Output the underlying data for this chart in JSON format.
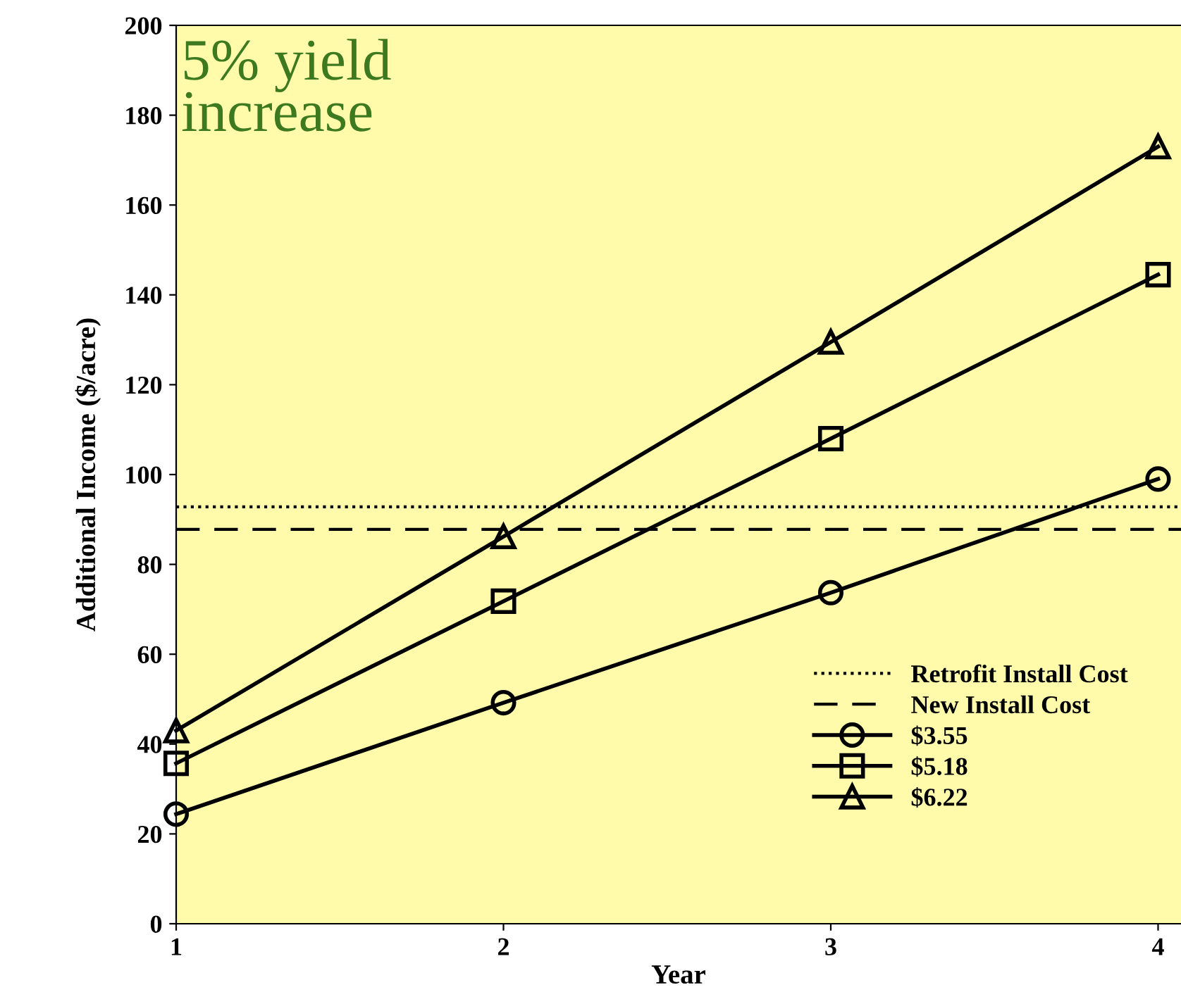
{
  "chart_data": {
    "type": "line",
    "xlabel": "Year",
    "ylabel": "Additional Income ($/acre)",
    "x": [
      1,
      2,
      3,
      4
    ],
    "xlim": [
      1,
      4.07
    ],
    "xticks": [
      1,
      2,
      3,
      4
    ],
    "ylim": [
      0,
      200
    ],
    "yticks": [
      0,
      20,
      40,
      60,
      80,
      100,
      120,
      140,
      160,
      180,
      200
    ],
    "grid": false,
    "legend": "bottom right",
    "line_style": "solid",
    "annotations": [
      "5% yield\nincrease"
    ],
    "ref_lines": [
      {
        "axis": "y",
        "value": 92.8,
        "label": "Retrofit Install Cost",
        "color": "#000000",
        "line_style": "dotted"
      },
      {
        "axis": "y",
        "value": 87.8,
        "label": "New Install Cost",
        "color": "#000000",
        "line_style": "dashed"
      }
    ],
    "series": [
      {
        "name": "$3.55",
        "color": "#000000",
        "marker": "circle",
        "values": [
          24.4,
          49.2,
          73.7,
          99
        ]
      },
      {
        "name": "$5.18",
        "color": "#000000",
        "marker": "square",
        "values": [
          35.7,
          71.8,
          108,
          144.5
        ]
      },
      {
        "name": "$6.22",
        "color": "#000000",
        "marker": "triangle",
        "values": [
          43,
          86.2,
          129.5,
          173
        ]
      }
    ]
  }
}
